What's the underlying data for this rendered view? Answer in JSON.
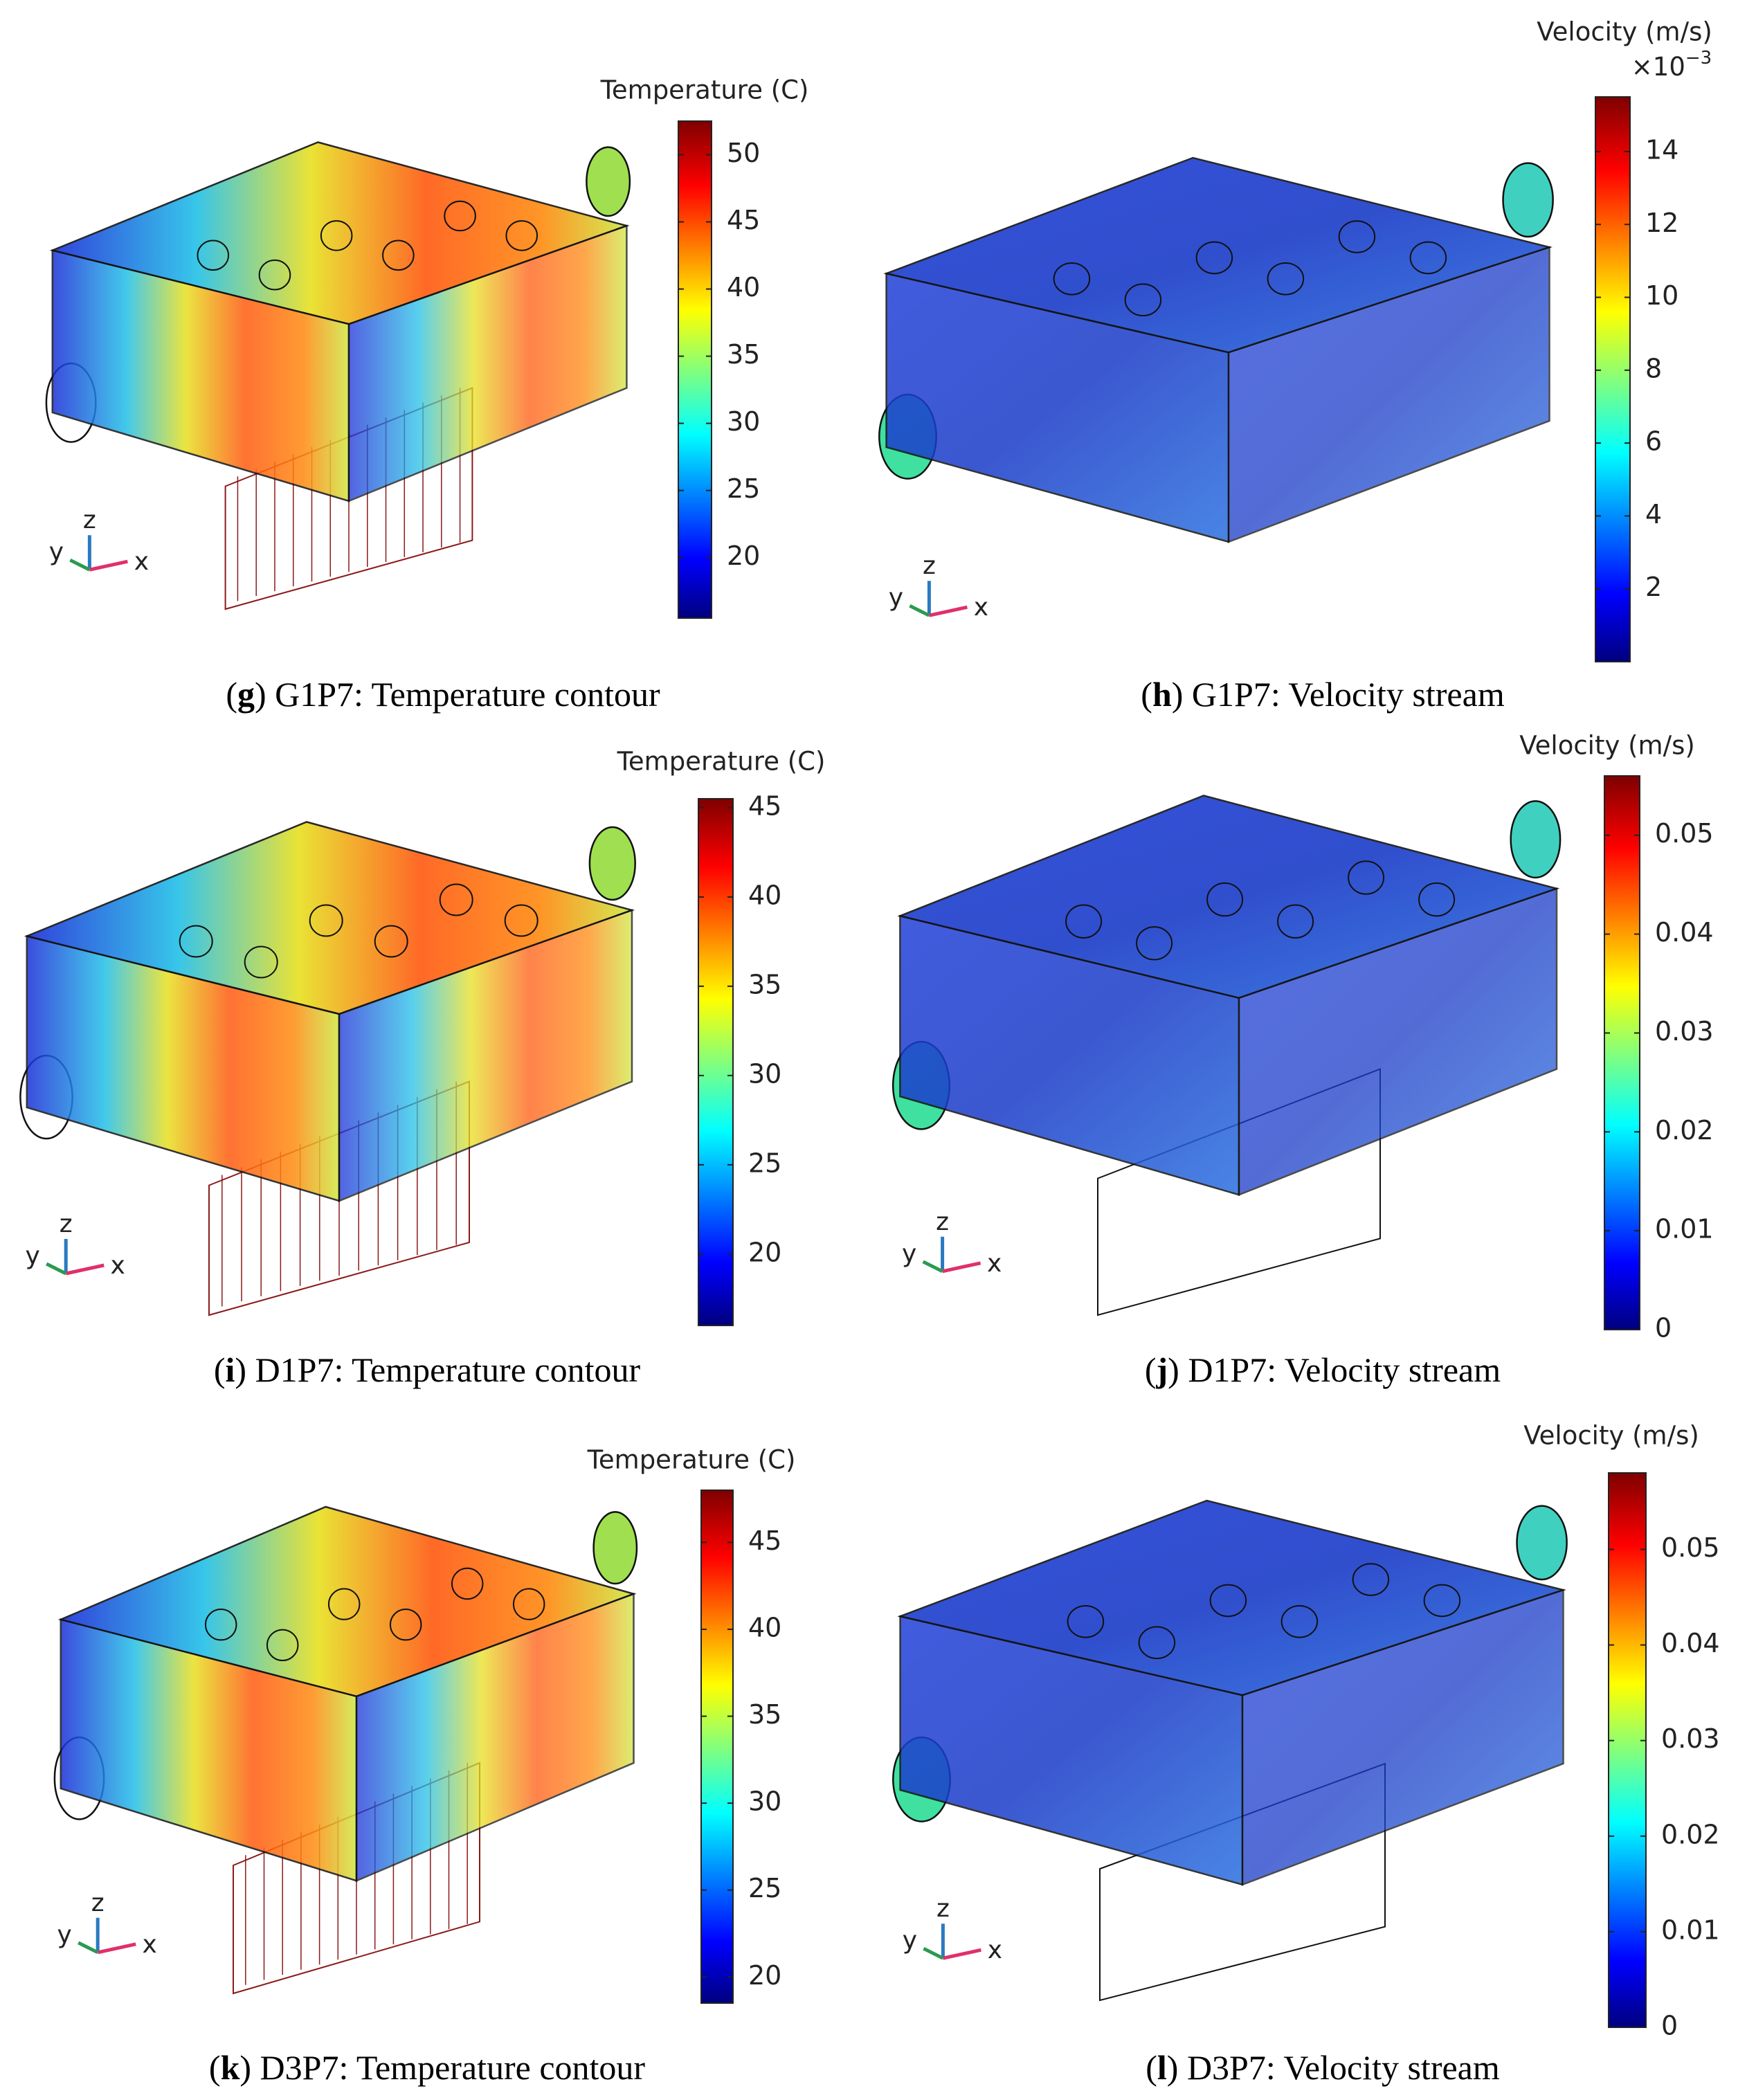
{
  "panels": [
    {
      "caption": [
        "(",
        "g",
        ") G1P7: Temperature contour"
      ],
      "axes": [
        "y",
        "z",
        "x"
      ],
      "colorbar": {
        "title": "Temperature (C)",
        "lim": [
          15.5,
          52.5
        ],
        "ticks": [
          20,
          25,
          30,
          35,
          40,
          45,
          50
        ]
      }
    },
    {
      "caption": [
        "(",
        "h",
        ") G1P7: Velocity stream"
      ],
      "axes": [
        "y",
        "z",
        "x"
      ],
      "colorbar": {
        "title": "Velocity (m/s)",
        "multiplier": "×10",
        "exponent": "−3",
        "lim": [
          0,
          15.5
        ],
        "ticks": [
          2,
          4,
          6,
          8,
          10,
          12,
          14
        ]
      }
    },
    {
      "caption": [
        "(",
        "i",
        ") D1P7: Temperature contour"
      ],
      "axes": [
        "y",
        "z",
        "x"
      ],
      "colorbar": {
        "title": "Temperature (C)",
        "lim": [
          16,
          45.5
        ],
        "ticks": [
          20,
          25,
          30,
          35,
          40,
          45
        ]
      }
    },
    {
      "caption": [
        "(",
        "j",
        ") D1P7: Velocity stream"
      ],
      "axes": [
        "y",
        "z",
        "x"
      ],
      "colorbar": {
        "title": "Velocity (m/s)",
        "lim": [
          0,
          0.056
        ],
        "ticks": [
          0,
          0.01,
          0.02,
          0.03,
          0.04,
          0.05
        ]
      }
    },
    {
      "caption": [
        "(",
        "k",
        ") D3P7: Temperature contour"
      ],
      "axes": [
        "y",
        "z",
        "x"
      ],
      "colorbar": {
        "title": "Temperature (C)",
        "lim": [
          18.5,
          48
        ],
        "ticks": [
          20,
          25,
          30,
          35,
          40,
          45
        ]
      }
    },
    {
      "caption": [
        "(",
        "l",
        ") D3P7: Velocity stream"
      ],
      "axes": [
        "y",
        "z",
        "x"
      ],
      "colorbar": {
        "title": "Velocity (m/s)",
        "lim": [
          0,
          0.058
        ],
        "ticks": [
          0,
          0.01,
          0.02,
          0.03,
          0.04,
          0.05
        ]
      }
    }
  ]
}
